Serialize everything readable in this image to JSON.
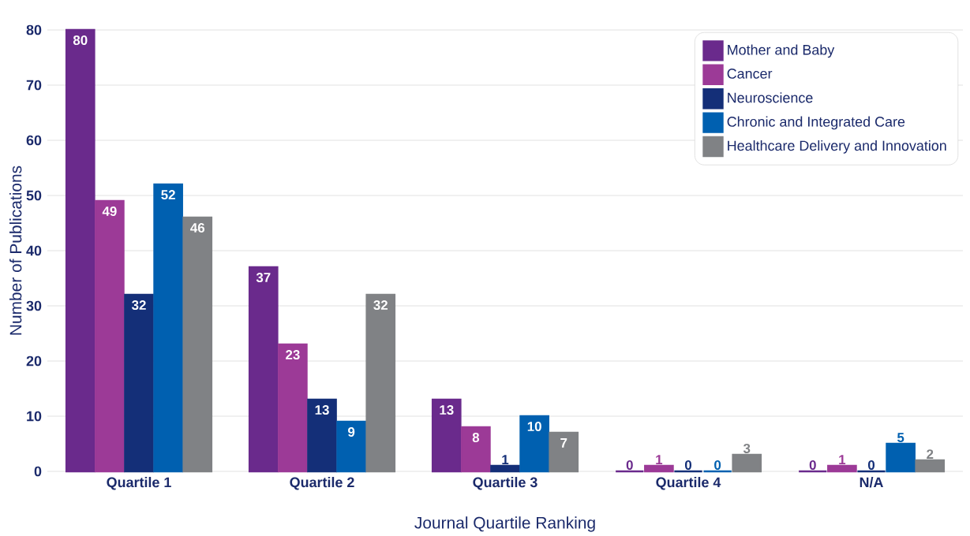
{
  "chart_data": {
    "type": "bar",
    "xlabel": "Journal Quartile Ranking",
    "ylabel": "Number of Publications",
    "categories": [
      "Quartile 1",
      "Quartile 2",
      "Quartile 3",
      "Quartile 4",
      "N/A"
    ],
    "series": [
      {
        "name": "Mother and Baby",
        "color": "#6a2a8c",
        "values": [
          80,
          37,
          13,
          0,
          0
        ]
      },
      {
        "name": "Cancer",
        "color": "#9c3a97",
        "values": [
          49,
          23,
          8,
          1,
          1
        ]
      },
      {
        "name": "Neuroscience",
        "color": "#142f78",
        "values": [
          32,
          13,
          1,
          0,
          0
        ]
      },
      {
        "name": "Chronic and Integrated Care",
        "color": "#0060b0",
        "values": [
          52,
          9,
          10,
          0,
          5
        ]
      },
      {
        "name": "Healthcare Delivery and Innovation",
        "color": "#808285",
        "values": [
          46,
          32,
          7,
          3,
          2
        ]
      }
    ],
    "ylim": [
      0,
      80
    ],
    "yticks": [
      0,
      10,
      20,
      30,
      40,
      50,
      60,
      70,
      80
    ],
    "grid": "y",
    "legend": "top right",
    "data_labels": true
  }
}
